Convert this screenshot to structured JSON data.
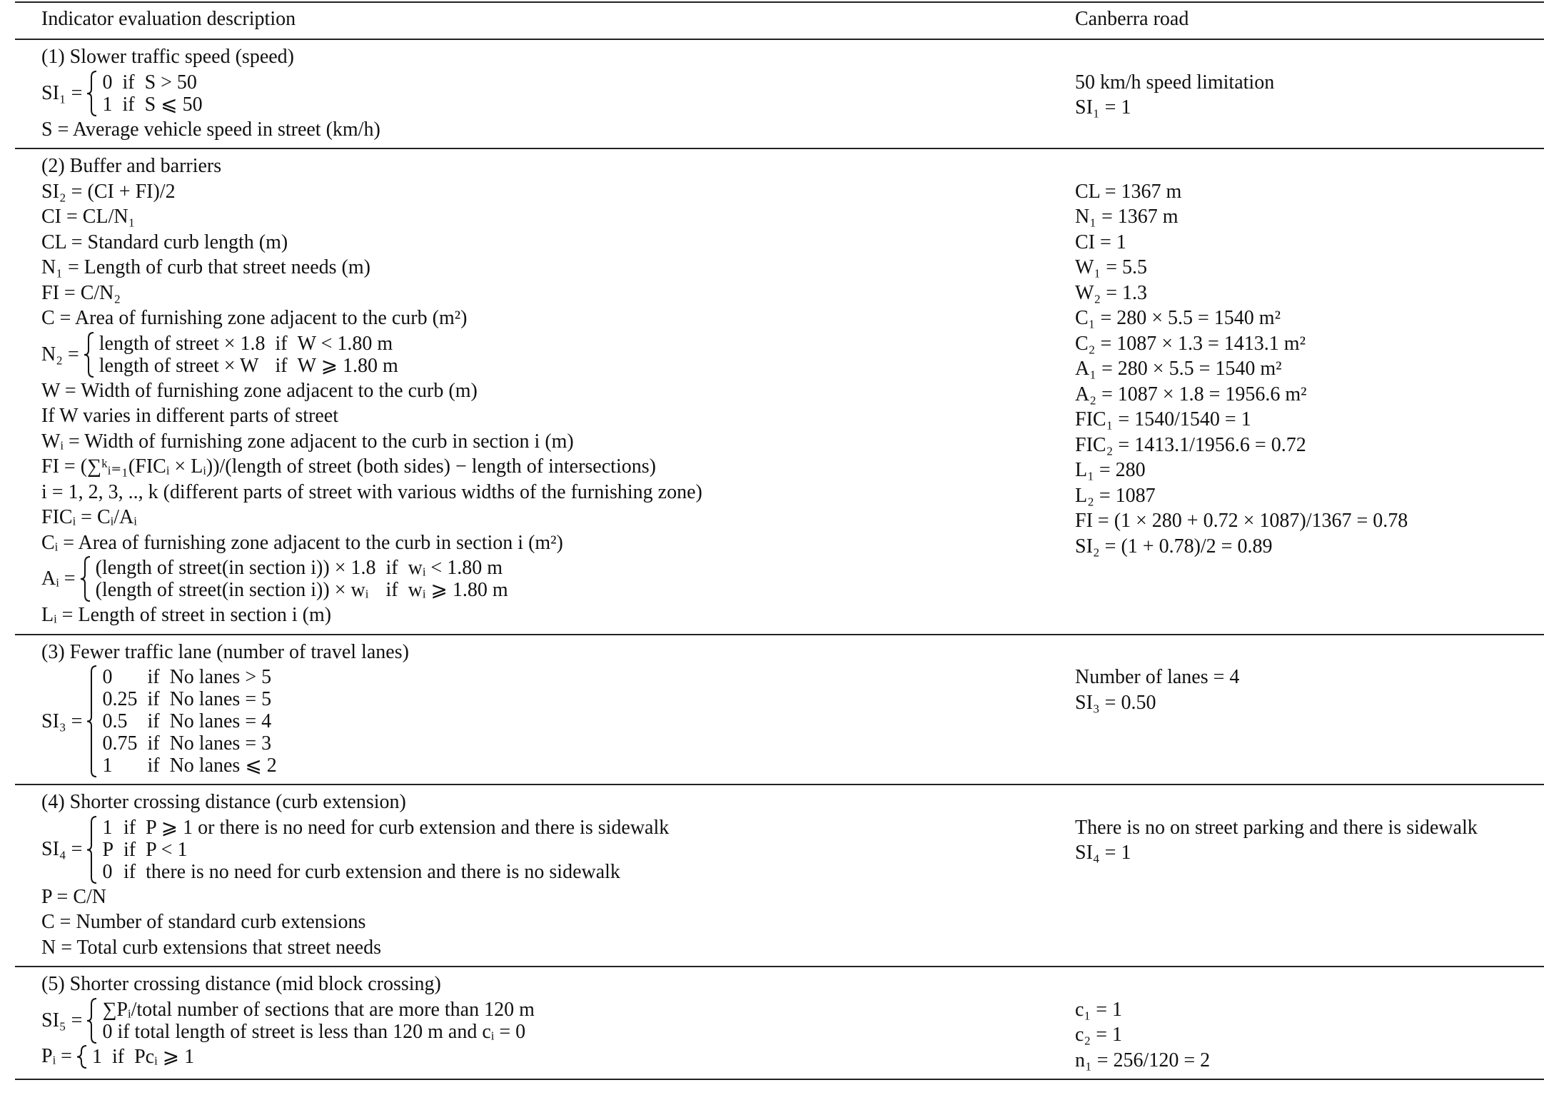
{
  "table": {
    "headers": [
      "Indicator evaluation description",
      "Canberra road"
    ],
    "sections": [
      {
        "left": [
          "(1) Slower traffic speed (speed)",
          {
            "lhs": "SI₁ =",
            "cases": [
              [
                "0",
                "if",
                "S > 50"
              ],
              [
                "1",
                "if",
                "S ⩽ 50"
              ]
            ]
          },
          "S = Average vehicle speed in street (km/h)"
        ],
        "right": [
          "50 km/h speed limitation",
          "SI₁ = 1"
        ]
      },
      {
        "left": [
          "(2) Buffer and barriers",
          "SI₂ = (CI + FI)/2",
          "CI = CL/N₁",
          "CL = Standard curb length (m)",
          "N₁ = Length of curb that street needs (m)",
          "FI = C/N₂",
          "C = Area of furnishing zone adjacent to the curb (m²)",
          {
            "lhs": "N₂ =",
            "cases": [
              [
                "length of street × 1.8",
                "if",
                "W < 1.80 m"
              ],
              [
                "length of street × W",
                "if",
                "W ⩾ 1.80 m"
              ]
            ]
          },
          "W = Width of furnishing zone adjacent to the curb (m)",
          "If W varies in different parts of street",
          "Wᵢ = Width of furnishing zone adjacent to the curb in section i (m)",
          "FI = (∑ᵏᵢ₌₁(FICᵢ × Lᵢ))/(length of street (both sides) − length of intersections)",
          "i = 1, 2, 3, .., k (different parts of street with various widths of the furnishing zone)",
          "FICᵢ = Cᵢ/Aᵢ",
          "Cᵢ = Area of furnishing zone adjacent to the curb in section i (m²)",
          {
            "lhs": "Aᵢ =",
            "cases": [
              [
                "(length of street(in section i)) × 1.8",
                "if",
                "wᵢ < 1.80 m"
              ],
              [
                "(length of street(in section i)) × wᵢ",
                "if",
                "wᵢ ⩾ 1.80 m"
              ]
            ]
          },
          "Lᵢ = Length of street in section i (m)"
        ],
        "right": [
          "CL = 1367 m",
          "N₁ = 1367 m",
          "CI = 1",
          "W₁ = 5.5",
          "W₂ = 1.3",
          "C₁ = 280 × 5.5 = 1540 m²",
          "C₂ = 1087 × 1.3 = 1413.1 m²",
          "A₁ = 280 × 5.5 = 1540 m²",
          "A₂ = 1087 × 1.8 = 1956.6 m²",
          "FIC₁ = 1540/1540 = 1",
          "FIC₂ = 1413.1/1956.6 = 0.72",
          "L₁ = 280",
          "L₂ = 1087",
          "FI = (1 × 280 + 0.72 × 1087)/1367 = 0.78",
          "SI₂ = (1 + 0.78)/2 = 0.89"
        ]
      },
      {
        "left": [
          "(3) Fewer traffic lane (number of travel lanes)",
          {
            "lhs": "SI₃ =",
            "cases": [
              [
                "0",
                "if",
                "No lanes > 5"
              ],
              [
                "0.25",
                "if",
                "No lanes = 5"
              ],
              [
                "0.5",
                "if",
                "No lanes = 4"
              ],
              [
                "0.75",
                "if",
                "No lanes = 3"
              ],
              [
                "1",
                "if",
                "No lanes ⩽ 2"
              ]
            ]
          }
        ],
        "right": [
          "Number of lanes = 4",
          "SI₃ = 0.50"
        ]
      },
      {
        "left": [
          "(4) Shorter crossing distance (curb extension)",
          {
            "lhs": "SI₄ =",
            "cases": [
              [
                "1",
                "if",
                "P ⩾ 1 or there is no need for curb extension and there is sidewalk"
              ],
              [
                "P",
                "if",
                "P < 1"
              ],
              [
                "0",
                "if",
                "there is no need for curb extension and there is no sidewalk"
              ]
            ]
          },
          "P = C/N",
          "C = Number of standard curb extensions",
          "N = Total curb extensions that street needs"
        ],
        "right": [
          "There is no on street parking and there is sidewalk",
          "SI₄ = 1"
        ]
      },
      {
        "left": [
          "(5) Shorter crossing distance (mid block crossing)",
          {
            "lhs": "SI₅ =",
            "cases": [
              [
                "∑Pᵢ/total number of sections that are more than 120 m"
              ],
              [
                "0 if total length of street is less than 120 m and cᵢ = 0"
              ]
            ]
          },
          {
            "lhs": "Pᵢ =",
            "cases": [
              [
                "1",
                "if",
                "Pcᵢ ⩾ 1"
              ]
            ]
          }
        ],
        "right": [
          "c₁ = 1",
          "c₂ = 1",
          "n₁ = 256/120 = 2"
        ]
      }
    ]
  }
}
